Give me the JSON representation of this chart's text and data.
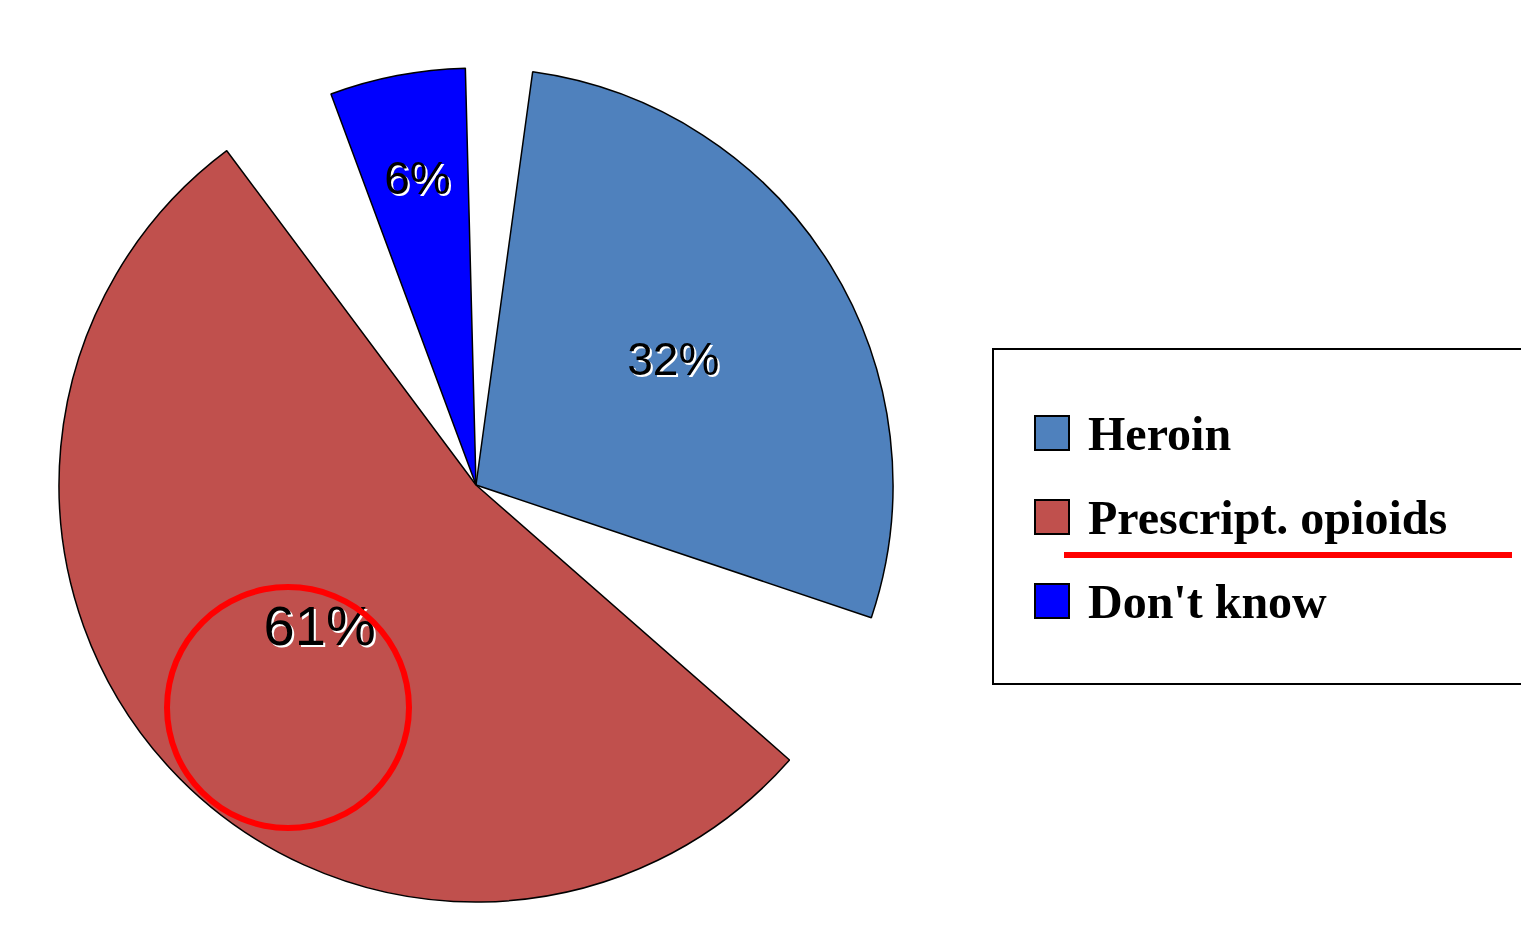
{
  "chart_data": {
    "type": "pie",
    "categories": [
      "Heroin",
      "Prescript. opioids",
      "Don't know"
    ],
    "values": [
      32,
      61,
      6
    ],
    "colors": [
      "#4f81bd",
      "#c0504d",
      "#0000ff"
    ],
    "value_labels": [
      "32%",
      "61%",
      "6%"
    ],
    "legend": "right"
  }
}
